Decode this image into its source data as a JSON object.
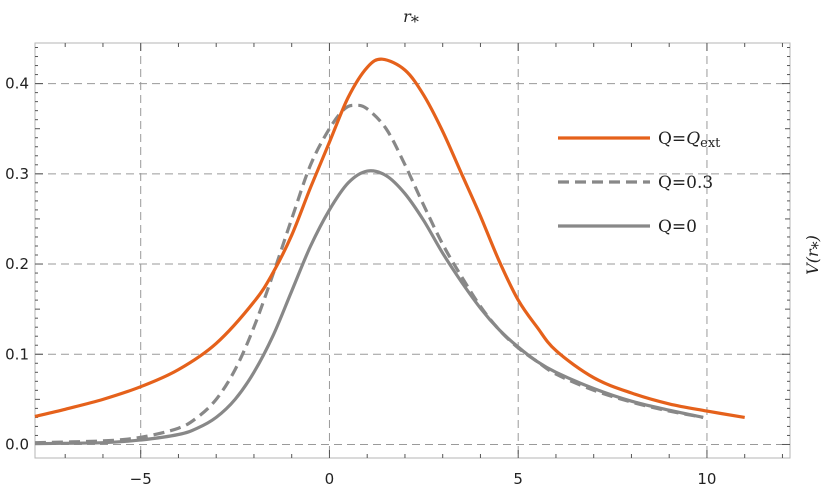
{
  "chart_data": {
    "type": "line",
    "title": "",
    "xlabel": "r⁎",
    "ylabel": "V(r⁎)",
    "xlim": [
      -7.8,
      12.2
    ],
    "ylim": [
      -0.015,
      0.445
    ],
    "x_ticks": [
      -5,
      0,
      5,
      10
    ],
    "x_tick_labels": [
      "−5",
      "0",
      "5",
      "10"
    ],
    "y_ticks": [
      0.0,
      0.1,
      0.2,
      0.3,
      0.4
    ],
    "y_tick_labels": [
      "0.0",
      "0.1",
      "0.2",
      "0.3",
      "0.4"
    ],
    "grid": true,
    "legend_position": "top-right",
    "series": [
      {
        "name": "Q=Qext",
        "legend_main": "Q=",
        "legend_italic": "Q",
        "legend_sub": "ext",
        "color": "#e5611b",
        "dash": "solid",
        "points": [
          [
            -7.8,
            0.031
          ],
          [
            -7,
            0.039
          ],
          [
            -6,
            0.05
          ],
          [
            -5,
            0.064
          ],
          [
            -4,
            0.083
          ],
          [
            -3,
            0.112
          ],
          [
            -2,
            0.158
          ],
          [
            -1.5,
            0.19
          ],
          [
            -1,
            0.232
          ],
          [
            -0.5,
            0.285
          ],
          [
            0,
            0.335
          ],
          [
            0.5,
            0.385
          ],
          [
            1,
            0.418
          ],
          [
            1.4,
            0.427
          ],
          [
            2,
            0.415
          ],
          [
            2.5,
            0.387
          ],
          [
            3,
            0.347
          ],
          [
            3.5,
            0.3
          ],
          [
            4,
            0.253
          ],
          [
            4.5,
            0.203
          ],
          [
            5,
            0.16
          ],
          [
            5.5,
            0.13
          ],
          [
            6,
            0.104
          ],
          [
            7,
            0.074
          ],
          [
            8,
            0.057
          ],
          [
            9,
            0.045
          ],
          [
            10,
            0.037
          ],
          [
            11,
            0.03
          ]
        ]
      },
      {
        "name": "Q=0.3",
        "legend_main": "Q=0.3",
        "legend_italic": "",
        "legend_sub": "",
        "color": "#888888",
        "dash": "dashed",
        "points": [
          [
            -7.8,
            0.002
          ],
          [
            -6,
            0.004
          ],
          [
            -5,
            0.008
          ],
          [
            -4,
            0.018
          ],
          [
            -3.5,
            0.03
          ],
          [
            -3,
            0.05
          ],
          [
            -2.5,
            0.083
          ],
          [
            -2,
            0.13
          ],
          [
            -1.5,
            0.188
          ],
          [
            -1,
            0.25
          ],
          [
            -0.5,
            0.31
          ],
          [
            0,
            0.35
          ],
          [
            0.4,
            0.372
          ],
          [
            0.7,
            0.376
          ],
          [
            1,
            0.372
          ],
          [
            1.5,
            0.35
          ],
          [
            2,
            0.31
          ],
          [
            2.5,
            0.265
          ],
          [
            3,
            0.222
          ],
          [
            3.5,
            0.186
          ],
          [
            4,
            0.153
          ],
          [
            4.5,
            0.127
          ],
          [
            5,
            0.107
          ],
          [
            5.5,
            0.092
          ],
          [
            6,
            0.078
          ],
          [
            7,
            0.06
          ],
          [
            8,
            0.047
          ],
          [
            9,
            0.037
          ],
          [
            9.9,
            0.03
          ]
        ]
      },
      {
        "name": "Q=0",
        "legend_main": "Q=0",
        "legend_italic": "",
        "legend_sub": "",
        "color": "#888888",
        "dash": "solid",
        "points": [
          [
            -7.8,
            0.001
          ],
          [
            -6,
            0.002
          ],
          [
            -5,
            0.005
          ],
          [
            -4,
            0.011
          ],
          [
            -3.5,
            0.018
          ],
          [
            -3,
            0.03
          ],
          [
            -2.5,
            0.05
          ],
          [
            -2,
            0.08
          ],
          [
            -1.5,
            0.12
          ],
          [
            -1,
            0.17
          ],
          [
            -0.5,
            0.22
          ],
          [
            0,
            0.26
          ],
          [
            0.5,
            0.29
          ],
          [
            1,
            0.303
          ],
          [
            1.5,
            0.298
          ],
          [
            2,
            0.278
          ],
          [
            2.5,
            0.248
          ],
          [
            3,
            0.212
          ],
          [
            3.5,
            0.18
          ],
          [
            4,
            0.151
          ],
          [
            4.5,
            0.127
          ],
          [
            5,
            0.108
          ],
          [
            5.5,
            0.092
          ],
          [
            6,
            0.08
          ],
          [
            7,
            0.062
          ],
          [
            8,
            0.048
          ],
          [
            9,
            0.038
          ],
          [
            9.9,
            0.03
          ]
        ]
      }
    ]
  }
}
